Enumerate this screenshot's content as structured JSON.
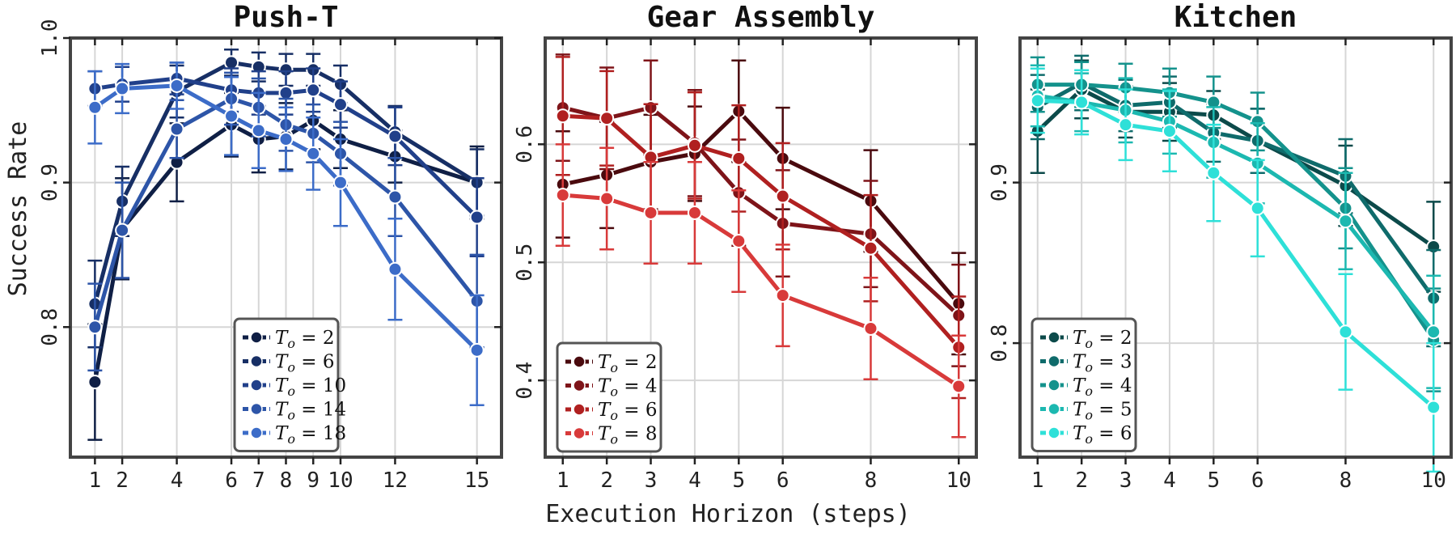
{
  "figure": {
    "xlabel": "Execution Horizon (steps)",
    "ylabel": "Success Rate"
  },
  "chart_data": [
    {
      "type": "line",
      "title": "Push-T",
      "x_ticks": [
        1,
        2,
        4,
        6,
        7,
        8,
        9,
        10,
        12,
        15
      ],
      "xlim": [
        0.1,
        15.9
      ],
      "y_ticks": [
        0.8,
        0.9,
        1.0
      ],
      "y_tick_labels": [
        "0.8",
        "0.9",
        "1.0"
      ],
      "ylim": [
        0.71,
        1.0
      ],
      "grid": true,
      "legend_position": "bottom-center",
      "series": [
        {
          "name": "T_o = 2",
          "color": "#0f1f45",
          "x": [
            1,
            2,
            4,
            6,
            7,
            8,
            9,
            10,
            12,
            15
          ],
          "y": [
            0.762,
            0.868,
            0.914,
            0.94,
            0.93,
            0.932,
            0.943,
            0.93,
            0.918,
            0.9
          ],
          "err": [
            0.04,
            0.035,
            0.027,
            0.022,
            0.023,
            0.023,
            0.02,
            0.02,
            0.018,
            0.025
          ]
        },
        {
          "name": "T_o = 6",
          "color": "#172f65",
          "x": [
            1,
            2,
            4,
            6,
            7,
            8,
            9,
            10,
            12,
            15
          ],
          "y": [
            0.816,
            0.887,
            0.963,
            0.983,
            0.98,
            0.978,
            0.978,
            0.968,
            0.935,
            0.9
          ],
          "err": [
            0.03,
            0.024,
            0.018,
            0.009,
            0.01,
            0.011,
            0.011,
            0.013,
            0.018,
            0.023
          ]
        },
        {
          "name": "T_o = 10",
          "color": "#21408a",
          "x": [
            1,
            2,
            4,
            6,
            7,
            8,
            9,
            10,
            12,
            15
          ],
          "y": [
            0.965,
            0.968,
            0.972,
            0.964,
            0.962,
            0.962,
            0.964,
            0.954,
            0.932,
            0.876
          ],
          "err": [
            0.012,
            0.012,
            0.011,
            0.015,
            0.015,
            0.015,
            0.015,
            0.016,
            0.02,
            0.027
          ]
        },
        {
          "name": "T_o = 14",
          "color": "#2d55a8",
          "x": [
            1,
            2,
            4,
            6,
            7,
            8,
            9,
            10,
            12,
            15
          ],
          "y": [
            0.8,
            0.867,
            0.937,
            0.958,
            0.952,
            0.94,
            0.934,
            0.92,
            0.89,
            0.818
          ],
          "err": [
            0.03,
            0.033,
            0.02,
            0.018,
            0.02,
            0.018,
            0.02,
            0.022,
            0.027,
            0.032
          ]
        },
        {
          "name": "T_o = 18",
          "color": "#3c6cc8",
          "x": [
            1,
            2,
            4,
            6,
            7,
            8,
            9,
            10,
            12,
            15
          ],
          "y": [
            0.952,
            0.965,
            0.967,
            0.946,
            0.936,
            0.93,
            0.92,
            0.9,
            0.84,
            0.784
          ],
          "err": [
            0.025,
            0.017,
            0.016,
            0.027,
            0.026,
            0.022,
            0.025,
            0.03,
            0.035,
            0.038
          ]
        }
      ]
    },
    {
      "type": "line",
      "title": "Gear Assembly",
      "x_ticks": [
        1,
        2,
        3,
        4,
        5,
        6,
        8,
        10
      ],
      "xlim": [
        0.6,
        10.4
      ],
      "y_ticks": [
        0.4,
        0.5,
        0.6
      ],
      "y_tick_labels": [
        "0.4",
        "0.5",
        "0.6"
      ],
      "ylim": [
        0.335,
        0.69
      ],
      "grid": true,
      "legend_position": "bottom-left",
      "series": [
        {
          "name": "T_o = 2",
          "color": "#4a0a0e",
          "x": [
            1,
            2,
            3,
            4,
            5,
            6,
            8,
            10
          ],
          "y": [
            0.566,
            0.574,
            0.585,
            0.592,
            0.628,
            0.588,
            0.552,
            0.465
          ],
          "err": [
            0.045,
            0.045,
            0.04,
            0.04,
            0.043,
            0.043,
            0.043,
            0.043
          ]
        },
        {
          "name": "T_o = 4",
          "color": "#7e1419",
          "x": [
            1,
            2,
            3,
            4,
            5,
            6,
            8,
            10
          ],
          "y": [
            0.631,
            0.622,
            0.631,
            0.601,
            0.559,
            0.533,
            0.524,
            0.455
          ],
          "err": [
            0.045,
            0.043,
            0.04,
            0.045,
            0.045,
            0.045,
            0.045,
            0.043
          ]
        },
        {
          "name": "T_o = 6",
          "color": "#b02020",
          "x": [
            1,
            2,
            3,
            4,
            5,
            6,
            8,
            10
          ],
          "y": [
            0.624,
            0.622,
            0.589,
            0.599,
            0.588,
            0.556,
            0.512,
            0.428
          ],
          "err": [
            0.05,
            0.04,
            0.045,
            0.045,
            0.045,
            0.045,
            0.045,
            0.043
          ]
        },
        {
          "name": "T_o = 8",
          "color": "#d83a3a",
          "x": [
            1,
            2,
            3,
            4,
            5,
            6,
            8,
            10
          ],
          "y": [
            0.557,
            0.554,
            0.542,
            0.542,
            0.518,
            0.472,
            0.444,
            0.395
          ],
          "err": [
            0.043,
            0.043,
            0.043,
            0.043,
            0.043,
            0.043,
            0.043,
            0.043
          ]
        }
      ]
    },
    {
      "type": "line",
      "title": "Kitchen",
      "x_ticks": [
        1,
        2,
        3,
        4,
        5,
        6,
        8,
        10
      ],
      "xlim": [
        0.6,
        10.4
      ],
      "y_ticks": [
        0.8,
        0.9
      ],
      "y_tick_labels": [
        "0.8",
        "0.9"
      ],
      "ylim": [
        0.729,
        0.99
      ],
      "grid": true,
      "legend_position": "bottom-left",
      "series": [
        {
          "name": "T_o = 2",
          "color": "#0c4a4a",
          "x": [
            1,
            2,
            3,
            4,
            5,
            6,
            8,
            10
          ],
          "y": [
            0.932,
            0.958,
            0.944,
            0.944,
            0.942,
            0.926,
            0.898,
            0.86
          ],
          "err": [
            0.026,
            0.018,
            0.016,
            0.018,
            0.015,
            0.02,
            0.025,
            0.028
          ]
        },
        {
          "name": "T_o = 3",
          "color": "#0f6b6b",
          "x": [
            1,
            2,
            3,
            4,
            5,
            6,
            8,
            10
          ],
          "y": [
            0.947,
            0.962,
            0.948,
            0.95,
            0.931,
            0.926,
            0.904,
            0.828
          ],
          "err": [
            0.02,
            0.017,
            0.016,
            0.016,
            0.018,
            0.02,
            0.023,
            0.03
          ]
        },
        {
          "name": "T_o = 4",
          "color": "#14928c",
          "x": [
            1,
            2,
            3,
            4,
            5,
            6,
            8,
            10
          ],
          "y": [
            0.961,
            0.961,
            0.959,
            0.956,
            0.95,
            0.938,
            0.884,
            0.802
          ],
          "err": [
            0.017,
            0.014,
            0.015,
            0.015,
            0.016,
            0.018,
            0.025,
            0.032
          ]
        },
        {
          "name": "T_o = 5",
          "color": "#1cb8b0",
          "x": [
            1,
            2,
            3,
            4,
            5,
            6,
            8,
            10
          ],
          "y": [
            0.954,
            0.95,
            0.945,
            0.938,
            0.925,
            0.912,
            0.876,
            0.807
          ],
          "err": [
            0.019,
            0.018,
            0.02,
            0.02,
            0.022,
            0.025,
            0.03,
            0.035
          ]
        },
        {
          "name": "T_o = 6",
          "color": "#2ee0d8",
          "x": [
            1,
            2,
            3,
            4,
            5,
            6,
            8,
            10
          ],
          "y": [
            0.951,
            0.95,
            0.936,
            0.932,
            0.906,
            0.884,
            0.807,
            0.76
          ],
          "err": [
            0.02,
            0.02,
            0.022,
            0.025,
            0.03,
            0.03,
            0.036,
            0.04
          ]
        }
      ]
    }
  ]
}
